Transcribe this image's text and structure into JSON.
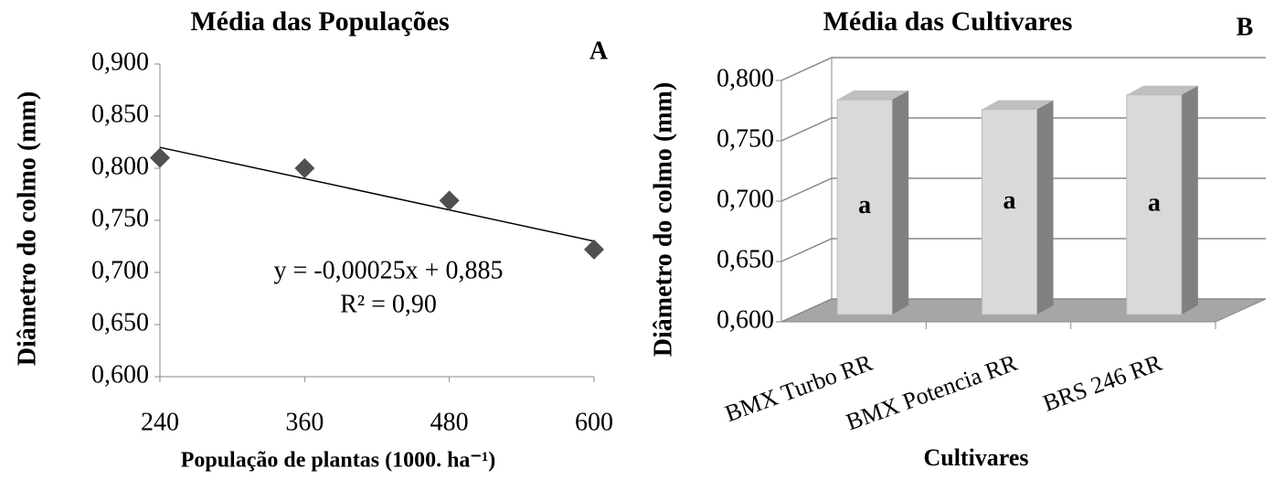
{
  "chart_data": [
    {
      "type": "scatter",
      "title": "Média das Populações",
      "corner_label": "A",
      "x_label": "População de plantas (1000. ha⁻¹)",
      "y_label": "Diâmetro do colmo (mm)",
      "x": [
        240,
        360,
        480,
        600
      ],
      "values": [
        0.81,
        0.8,
        0.769,
        0.722
      ],
      "color": "#505050",
      "trendline": {
        "x": [
          240,
          600
        ],
        "values": [
          0.82,
          0.73
        ]
      },
      "annotations": [
        "y = -0,00025x + 0,885",
        "R² = 0,90"
      ],
      "xlim": [
        240,
        600
      ],
      "xticks": [
        240,
        360,
        480,
        600
      ],
      "ylim": [
        0.6,
        0.9
      ],
      "yticks": [
        {
          "value": 0.6,
          "label": "0,600"
        },
        {
          "value": 0.65,
          "label": "0,650"
        },
        {
          "value": 0.7,
          "label": "0,700"
        },
        {
          "value": 0.75,
          "label": "0,750"
        },
        {
          "value": 0.8,
          "label": "0,800"
        },
        {
          "value": 0.85,
          "label": "0,850"
        },
        {
          "value": 0.9,
          "label": "0,900"
        }
      ]
    },
    {
      "type": "bar3d",
      "title": "Média das Cultivares",
      "corner_label": "B",
      "x_label": "Cultivares",
      "y_label": "Diâmetro do colmo (mm)",
      "categories": [
        "BMX Turbo RR",
        "BMX Potencia RR",
        "BRS 246 RR"
      ],
      "values": [
        0.778,
        0.77,
        0.782
      ],
      "labels": [
        "a",
        "a",
        "a"
      ],
      "color": "#d9d9d9",
      "ylim": [
        0.6,
        0.8
      ],
      "yticks": [
        {
          "value": 0.6,
          "label": "0,600"
        },
        {
          "value": 0.65,
          "label": "0,650"
        },
        {
          "value": 0.7,
          "label": "0,700"
        },
        {
          "value": 0.75,
          "label": "0,750"
        },
        {
          "value": 0.8,
          "label": "0,800"
        }
      ],
      "grid": true
    }
  ]
}
